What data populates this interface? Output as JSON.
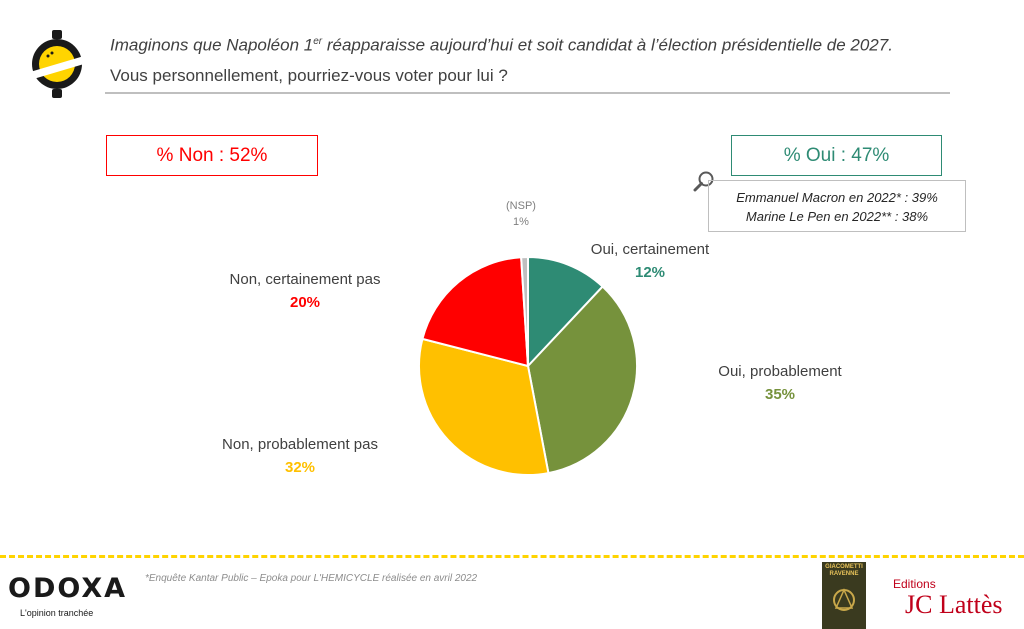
{
  "header": {
    "question_line1_pre": "Imaginons que Napoléon 1",
    "question_line1_sup": "er",
    "question_line1_post": " réapparaisse aujourd’hui et soit candidat à l’élection présidentielle de 2027.",
    "question_line2": "Vous personnellement, pourriez-vous voter pour lui ?"
  },
  "summary": {
    "non": "% Non : 52%",
    "oui": "% Oui : 47%"
  },
  "comparison": {
    "line1": "Emmanuel Macron en 2022* : 39%",
    "line2": "Marine Le Pen en 2022** : 38%"
  },
  "chart_data": {
    "type": "pie",
    "start_angle_deg": 0,
    "direction": "clockwise",
    "slices": [
      {
        "label": "Oui, certainement",
        "value": 12,
        "display": "12%",
        "color": "#2e8b74",
        "label_color": "#2e8b74"
      },
      {
        "label": "Oui, probablement",
        "value": 35,
        "display": "35%",
        "color": "#76923c",
        "label_color": "#76923c"
      },
      {
        "label": "Non, probablement pas",
        "value": 32,
        "display": "32%",
        "color": "#ffc000",
        "label_color": "#ffc000"
      },
      {
        "label": "Non, certainement pas",
        "value": 20,
        "display": "20%",
        "color": "#ff0000",
        "label_color": "#ff0000"
      },
      {
        "label": "(NSP)",
        "value": 1,
        "display": "1%",
        "color": "#bfbfbf",
        "label_color": "#a6a6a6"
      }
    ]
  },
  "footer": {
    "brand": "ODOXA",
    "tagline": "L'opinion tranchée",
    "source": "*Enquête Kantar Public – Epoka pour L'HEMICYCLE réalisée en avril 2022",
    "book_title": "GIACOMETTI RAVENNE",
    "publisher_prefix": "Editions",
    "publisher": "JC Lattès"
  },
  "colors": {
    "non_accent": "#ff0000",
    "oui_accent": "#2e8b74",
    "footer_rule": "#ffd400"
  }
}
